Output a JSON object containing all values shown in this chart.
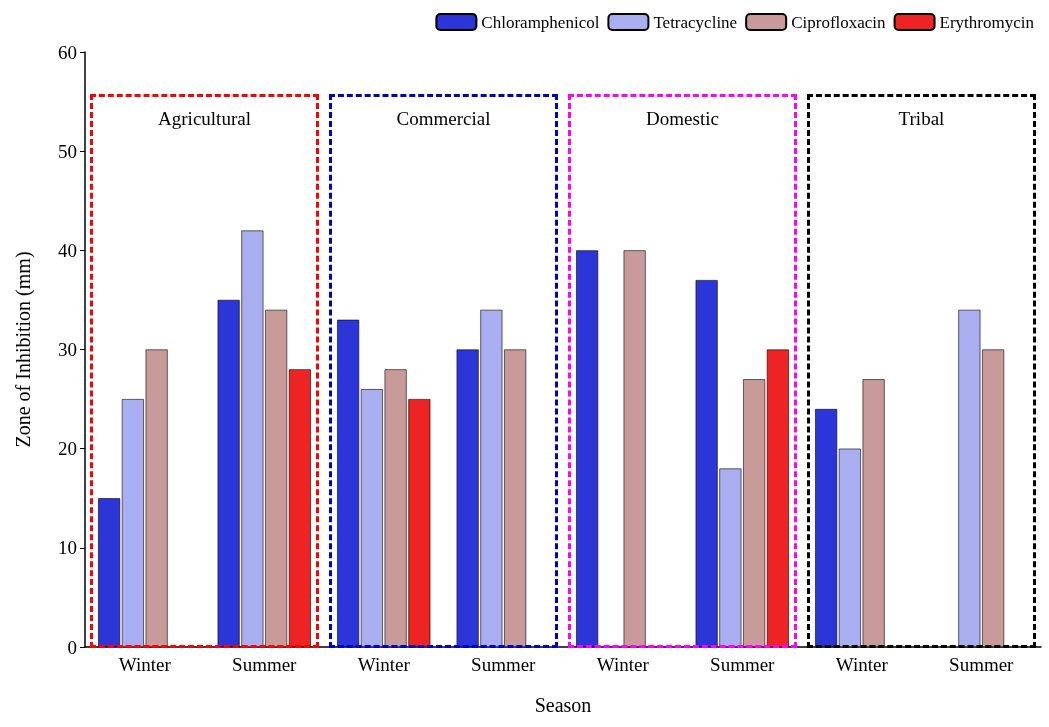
{
  "chart_data": {
    "type": "bar",
    "xlabel": "Season",
    "ylabel": "Zone of Inhibition (mm)",
    "categories": [
      "Winter",
      "Summer",
      "Winter",
      "Summer",
      "Winter",
      "Summer",
      "Winter",
      "Summer"
    ],
    "series": [
      {
        "name": "Chloramphenicol",
        "color": "#2b35d8",
        "values": [
          15,
          35,
          33,
          30,
          40,
          37,
          24,
          null
        ]
      },
      {
        "name": "Tetracycline",
        "color": "#a9aef0",
        "values": [
          25,
          42,
          26,
          34,
          null,
          18,
          20,
          34
        ]
      },
      {
        "name": "Ciprofloxacin",
        "color": "#c99a9a",
        "values": [
          30,
          34,
          28,
          30,
          40,
          27,
          27,
          30
        ]
      },
      {
        "name": "Erythromycin",
        "color": "#ee2424",
        "values": [
          null,
          28,
          25,
          null,
          null,
          30,
          null,
          null
        ]
      }
    ],
    "ylim": [
      0,
      60
    ],
    "yticks": [
      0,
      10,
      20,
      30,
      40,
      50,
      60
    ],
    "annotations": [
      "Agricultural",
      "Commercial",
      "Domestic",
      "Tribal"
    ],
    "grid": false,
    "legend": "top right"
  }
}
